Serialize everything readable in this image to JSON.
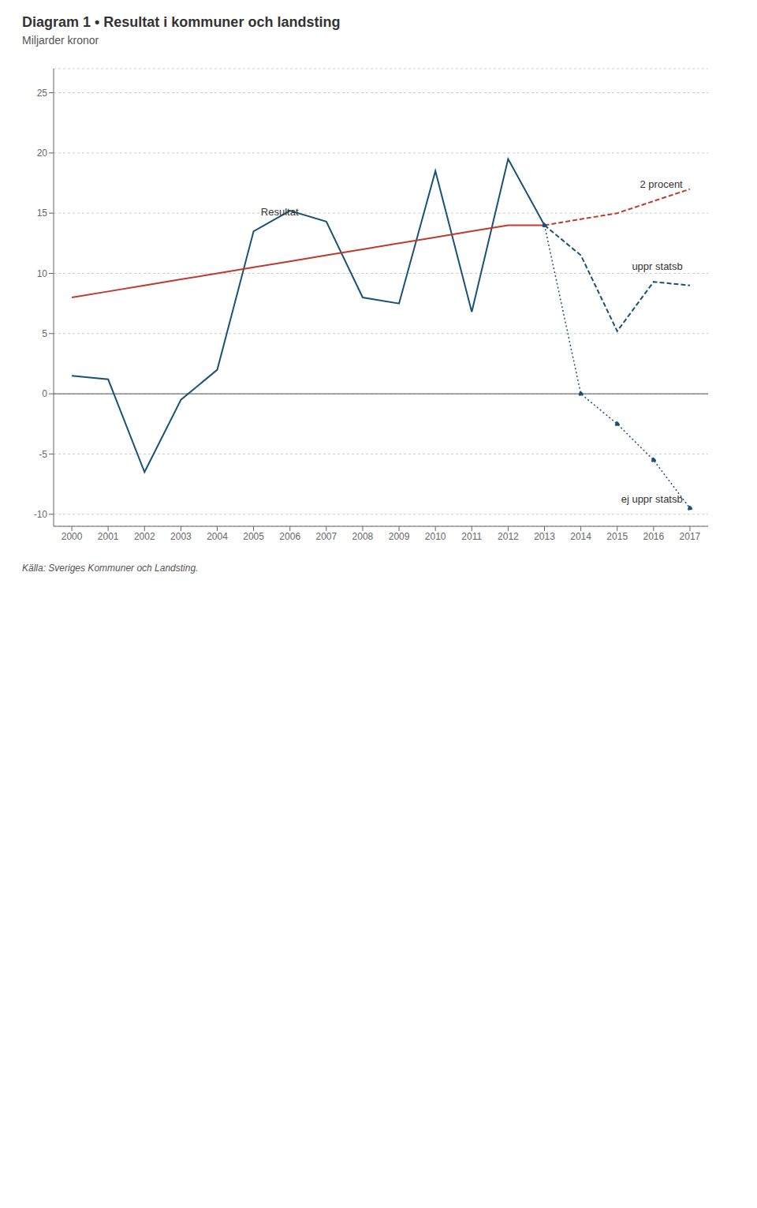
{
  "chart_data": {
    "type": "line",
    "title": "Diagram 1 • Resultat i kommuner och landsting",
    "subtitle": "Miljarder kronor",
    "source": "Källa: Sveriges Kommuner och Landsting.",
    "xlim": [
      1999.5,
      2017.5
    ],
    "xticks": [
      2000,
      2001,
      2002,
      2003,
      2004,
      2005,
      2006,
      2007,
      2008,
      2009,
      2010,
      2011,
      2012,
      2013,
      2014,
      2015,
      2016,
      2017
    ],
    "ylim": [
      -11,
      27
    ],
    "yticks": [
      -10,
      -5,
      0,
      5,
      10,
      15,
      20,
      25
    ],
    "grid": "y",
    "series": [
      {
        "color": "#1a5276",
        "line_style": "solid",
        "marker": "none",
        "x": [
          2000,
          2001,
          2002,
          2003,
          2004,
          2005,
          2006,
          2007,
          2008,
          2009,
          2010,
          2011,
          2012,
          2013
        ],
        "values": [
          1.5,
          1.2,
          -6.5,
          -0.5,
          2.0,
          13.5,
          15.2,
          14.3,
          8.0,
          7.5,
          18.5,
          6.8,
          19.5,
          14.0
        ]
      },
      {
        "color": "#c0392b",
        "line_style": "solid",
        "marker": "none",
        "x": [
          2000,
          2001,
          2002,
          2003,
          2004,
          2005,
          2006,
          2007,
          2008,
          2009,
          2010,
          2011,
          2012,
          2013
        ],
        "values": [
          8.0,
          8.5,
          9.0,
          9.5,
          10.0,
          10.5,
          11.0,
          11.5,
          12.0,
          12.5,
          13.0,
          13.5,
          14.0,
          14.0
        ]
      },
      {
        "color": "#c0392b",
        "line_style": "dashed",
        "marker": "none",
        "x": [
          2013,
          2014,
          2015,
          2016,
          2017
        ],
        "values": [
          14.0,
          14.5,
          15.0,
          16.0,
          17.0
        ]
      },
      {
        "color": "#1a5276",
        "line_style": "dashed",
        "marker": "none",
        "x": [
          2013,
          2014,
          2015,
          2016,
          2017
        ],
        "values": [
          14.0,
          11.5,
          5.2,
          9.3,
          9.0
        ]
      },
      {
        "color": "#1a5276",
        "line_style": "dotted",
        "marker": "circle",
        "x": [
          2013,
          2014,
          2015,
          2016,
          2017
        ],
        "values": [
          14.0,
          0.0,
          -2.5,
          -5.5,
          -9.5
        ]
      }
    ],
    "annotations": [
      {
        "text": "Resultat",
        "x": 2005.2,
        "y": 14.8,
        "align": "left"
      },
      {
        "text": "2 procent",
        "x": 2016.8,
        "y": 17.3,
        "align": "right"
      },
      {
        "text": "uppr statsb",
        "x": 2016.8,
        "y": 10.5,
        "align": "right"
      },
      {
        "text": "ej uppr statsb",
        "x": 2016.8,
        "y": -8.8,
        "align": "right"
      }
    ]
  }
}
